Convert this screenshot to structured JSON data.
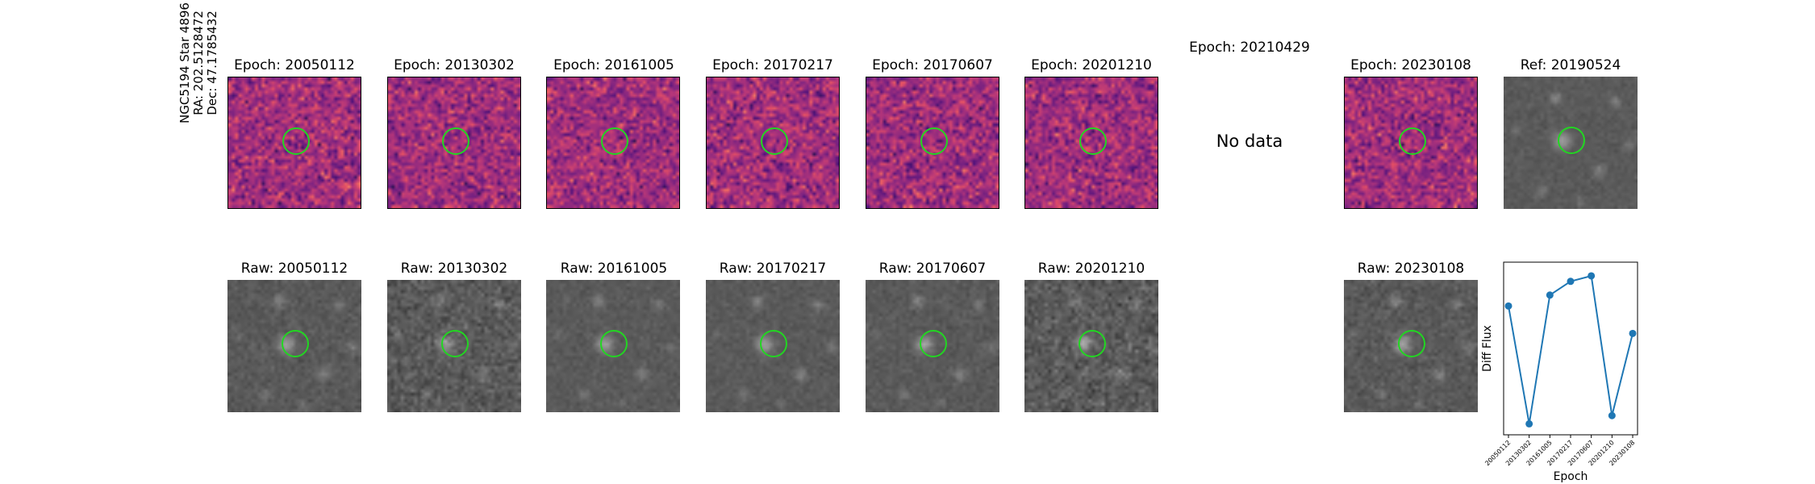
{
  "star": {
    "name_line": "NGC5194 Star 4896",
    "ra_line": "RA: 202.5128472",
    "dec_line": "Dec: 47.1785432"
  },
  "diff_titles": [
    "Epoch: 20050112",
    "Epoch: 20130302",
    "Epoch: 20161005",
    "Epoch: 20170217",
    "Epoch: 20170607",
    "Epoch: 20201210",
    "Epoch: 20210429",
    "Epoch: 20230108"
  ],
  "ref_title": "Ref: 20190524",
  "no_data_label": "No data",
  "raw_titles": [
    "Raw: 20050112",
    "Raw: 20130302",
    "Raw: 20161005",
    "Raw: 20170217",
    "Raw: 20170607",
    "Raw: 20201210",
    "Raw: 20230108"
  ],
  "colors": {
    "ring": "#22d622",
    "series": "#1f77b4",
    "diff_colormap": "magma"
  },
  "chart_data": {
    "type": "line",
    "title": "",
    "xlabel": "Epoch",
    "ylabel": "Diff Flux",
    "categories": [
      "20050112",
      "20130302",
      "20161005",
      "20170217",
      "20170607",
      "20201210",
      "20230108"
    ],
    "series": [
      {
        "values": [
          0.55,
          -1.6,
          0.75,
          1.0,
          1.1,
          -1.45,
          0.05
        ]
      }
    ],
    "ylim": [
      -1.8,
      1.35
    ],
    "grid": false
  }
}
